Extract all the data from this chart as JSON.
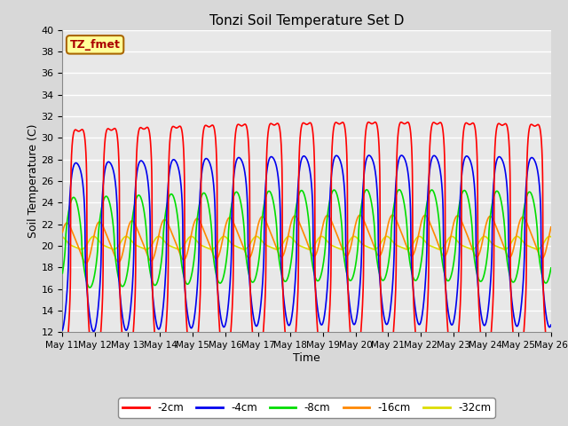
{
  "title": "Tonzi Soil Temperature Set D",
  "xlabel": "Time",
  "ylabel": "Soil Temperature (C)",
  "ylim": [
    12,
    40
  ],
  "yticks": [
    12,
    14,
    16,
    18,
    20,
    22,
    24,
    26,
    28,
    30,
    32,
    34,
    36,
    38,
    40
  ],
  "x_start_day": 11,
  "x_end_day": 26,
  "x_tick_days": [
    11,
    12,
    13,
    14,
    15,
    16,
    17,
    18,
    19,
    20,
    21,
    22,
    23,
    24,
    25,
    26
  ],
  "colors": {
    "-2cm": "#ff0000",
    "-4cm": "#0000ee",
    "-8cm": "#00dd00",
    "-16cm": "#ff8800",
    "-32cm": "#dddd00"
  },
  "annotation_text": "TZ_fmet",
  "annotation_color": "#aa0000",
  "annotation_bg": "#ffff99",
  "annotation_border": "#aa6600",
  "background_color": "#d8d8d8",
  "plot_bg_color": "#e8e8e8",
  "grid_color": "#ffffff",
  "n_days": 15,
  "points_per_day": 288,
  "base_temp": 20.5,
  "amp_2": 11.5,
  "amp_4": 7.8,
  "amp_8": 4.2,
  "amp_16": 1.8,
  "amp_32": 0.55,
  "phase_lag_4": 0.35,
  "phase_lag_8": 1.0,
  "phase_lag_16": 2.0,
  "phase_lag_32": 3.2,
  "spike_sharpness": 3.5
}
